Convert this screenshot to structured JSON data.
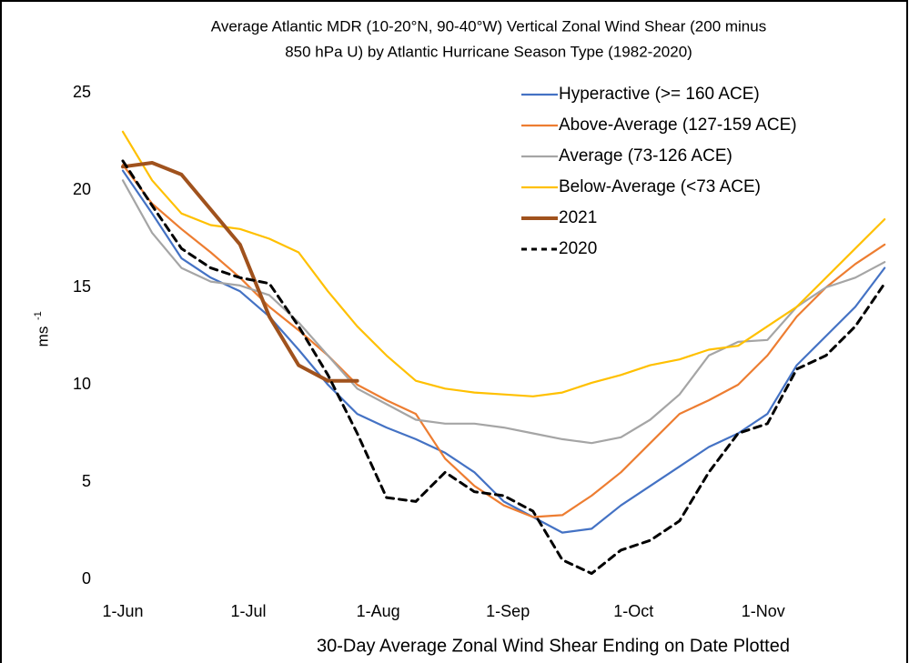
{
  "chart_data": {
    "type": "line",
    "title": [
      "Average Atlantic MDR (10-20°N, 90-40°W) Vertical Zonal Wind Shear (200 minus",
      "850 hPa U) by Atlantic Hurricane Season Type (1982-2020)"
    ],
    "xlabel": "30-Day Average Zonal Wind Shear Ending on Date Plotted",
    "ylabel": "ms",
    "ylabel_superscript": "-1",
    "x": [
      0,
      7,
      14,
      21,
      28,
      35,
      42,
      49,
      56,
      63,
      70,
      77,
      84,
      91,
      98,
      105,
      112,
      119,
      126,
      133,
      140,
      147,
      154,
      161,
      168,
      175,
      182
    ],
    "xlim": [
      0,
      185
    ],
    "xticks": [
      {
        "value": 0,
        "label": "1-Jun"
      },
      {
        "value": 30,
        "label": "1-Jul"
      },
      {
        "value": 61,
        "label": "1-Aug"
      },
      {
        "value": 92,
        "label": "1-Sep"
      },
      {
        "value": 122,
        "label": "1-Oct"
      },
      {
        "value": 153,
        "label": "1-Nov"
      }
    ],
    "ylim": [
      0,
      25
    ],
    "yticks": [
      0,
      5,
      10,
      15,
      20,
      25
    ],
    "legend": "upper right",
    "series": [
      {
        "name": "Hyperactive (>= 160 ACE)",
        "color": "#4472c4",
        "width": 2.2,
        "dash": false,
        "values": [
          21,
          18.8,
          16.5,
          15.5,
          14.8,
          13.5,
          11.8,
          10,
          8.5,
          7.8,
          7.2,
          6.5,
          5.5,
          4,
          3.2,
          2.4,
          2.6,
          3.8,
          4.8,
          5.8,
          6.8,
          7.5,
          8.5,
          11,
          12.5,
          14,
          16
        ]
      },
      {
        "name": "Above-Average (127-159 ACE)",
        "color": "#ed7d31",
        "width": 2.2,
        "dash": false,
        "values": [
          21.3,
          19.3,
          18,
          16.8,
          15.5,
          14,
          12.8,
          11.5,
          10,
          9.2,
          8.5,
          6.2,
          4.8,
          3.8,
          3.2,
          3.3,
          4.3,
          5.5,
          7,
          8.5,
          9.2,
          10,
          11.5,
          13.5,
          15,
          16.2,
          17.2
        ]
      },
      {
        "name": "Average (73-126 ACE)",
        "color": "#a5a5a5",
        "width": 2.2,
        "dash": false,
        "values": [
          20.5,
          17.8,
          16,
          15.3,
          15.1,
          14.6,
          13.2,
          11.5,
          9.8,
          9,
          8.2,
          8,
          8,
          7.8,
          7.5,
          7.2,
          7,
          7.3,
          8.2,
          9.5,
          11.5,
          12.2,
          12.3,
          14,
          15,
          15.5,
          16.3
        ]
      },
      {
        "name": "Below-Average (<73 ACE)",
        "color": "#ffc000",
        "width": 2.2,
        "dash": false,
        "values": [
          23,
          20.5,
          18.8,
          18.2,
          18,
          17.5,
          16.8,
          14.8,
          13,
          11.5,
          10.2,
          9.8,
          9.6,
          9.5,
          9.4,
          9.6,
          10.1,
          10.5,
          11,
          11.3,
          11.8,
          12,
          13,
          14,
          15.5,
          17,
          18.5
        ]
      },
      {
        "name": "2021",
        "color": "#a0521d",
        "width": 4,
        "dash": false,
        "values": [
          21.2,
          21.4,
          20.8,
          19,
          17.2,
          13.5,
          11,
          10.2,
          10.2,
          null,
          null,
          null,
          null,
          null,
          null,
          null,
          null,
          null,
          null,
          null,
          null,
          null,
          null,
          null,
          null,
          null,
          null
        ]
      },
      {
        "name": "2020",
        "color": "#000000",
        "width": 3,
        "dash": true,
        "values": [
          21.5,
          19.2,
          17,
          16,
          15.5,
          15.2,
          13,
          10.5,
          7.5,
          4.2,
          4,
          5.5,
          4.5,
          4.3,
          3.5,
          1,
          0.3,
          1.5,
          2,
          3,
          5.5,
          7.5,
          8,
          10.8,
          11.5,
          13,
          15.2
        ]
      }
    ]
  }
}
